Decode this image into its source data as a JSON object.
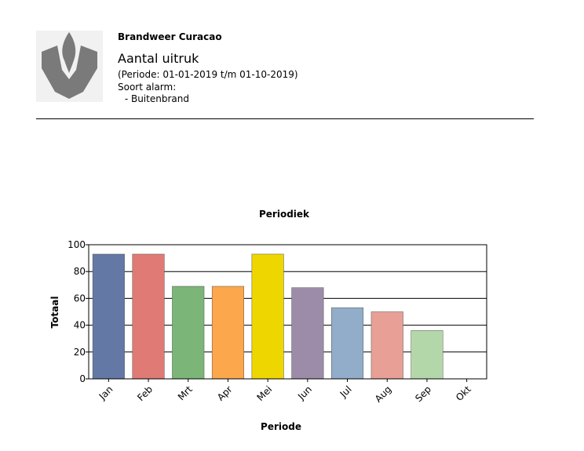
{
  "header": {
    "organization": "Brandweer Curacao",
    "report_title": "Aantal uitruk",
    "period": "(Periode: 01-01-2019 t/m 01-10-2019)",
    "alarm_type_label": "Soort alarm:",
    "alarm_type_value": " - Buitenbrand",
    "logo_icon": "fire-brigade-flame-shield-icon",
    "logo_color": "#7a7a7a"
  },
  "chart_data": {
    "type": "bar",
    "title": "Periodiek",
    "xlabel": "Periode",
    "ylabel": "Totaal",
    "categories": [
      "Jan",
      "Feb",
      "Mrt",
      "Apr",
      "Mei",
      "Jun",
      "Jul",
      "Aug",
      "Sep",
      "Okt"
    ],
    "values": [
      93,
      93,
      69,
      69,
      93,
      68,
      53,
      50,
      36,
      0
    ],
    "colors": [
      "#6478a5",
      "#e07a74",
      "#7bb577",
      "#fca74b",
      "#eed600",
      "#9d8ca9",
      "#91adc9",
      "#e8a096",
      "#b4d7a9",
      "#cccccc"
    ],
    "ylim": [
      0,
      100
    ],
    "yticks": [
      0,
      20,
      40,
      60,
      80,
      100
    ],
    "grid": true,
    "legend": "none"
  }
}
